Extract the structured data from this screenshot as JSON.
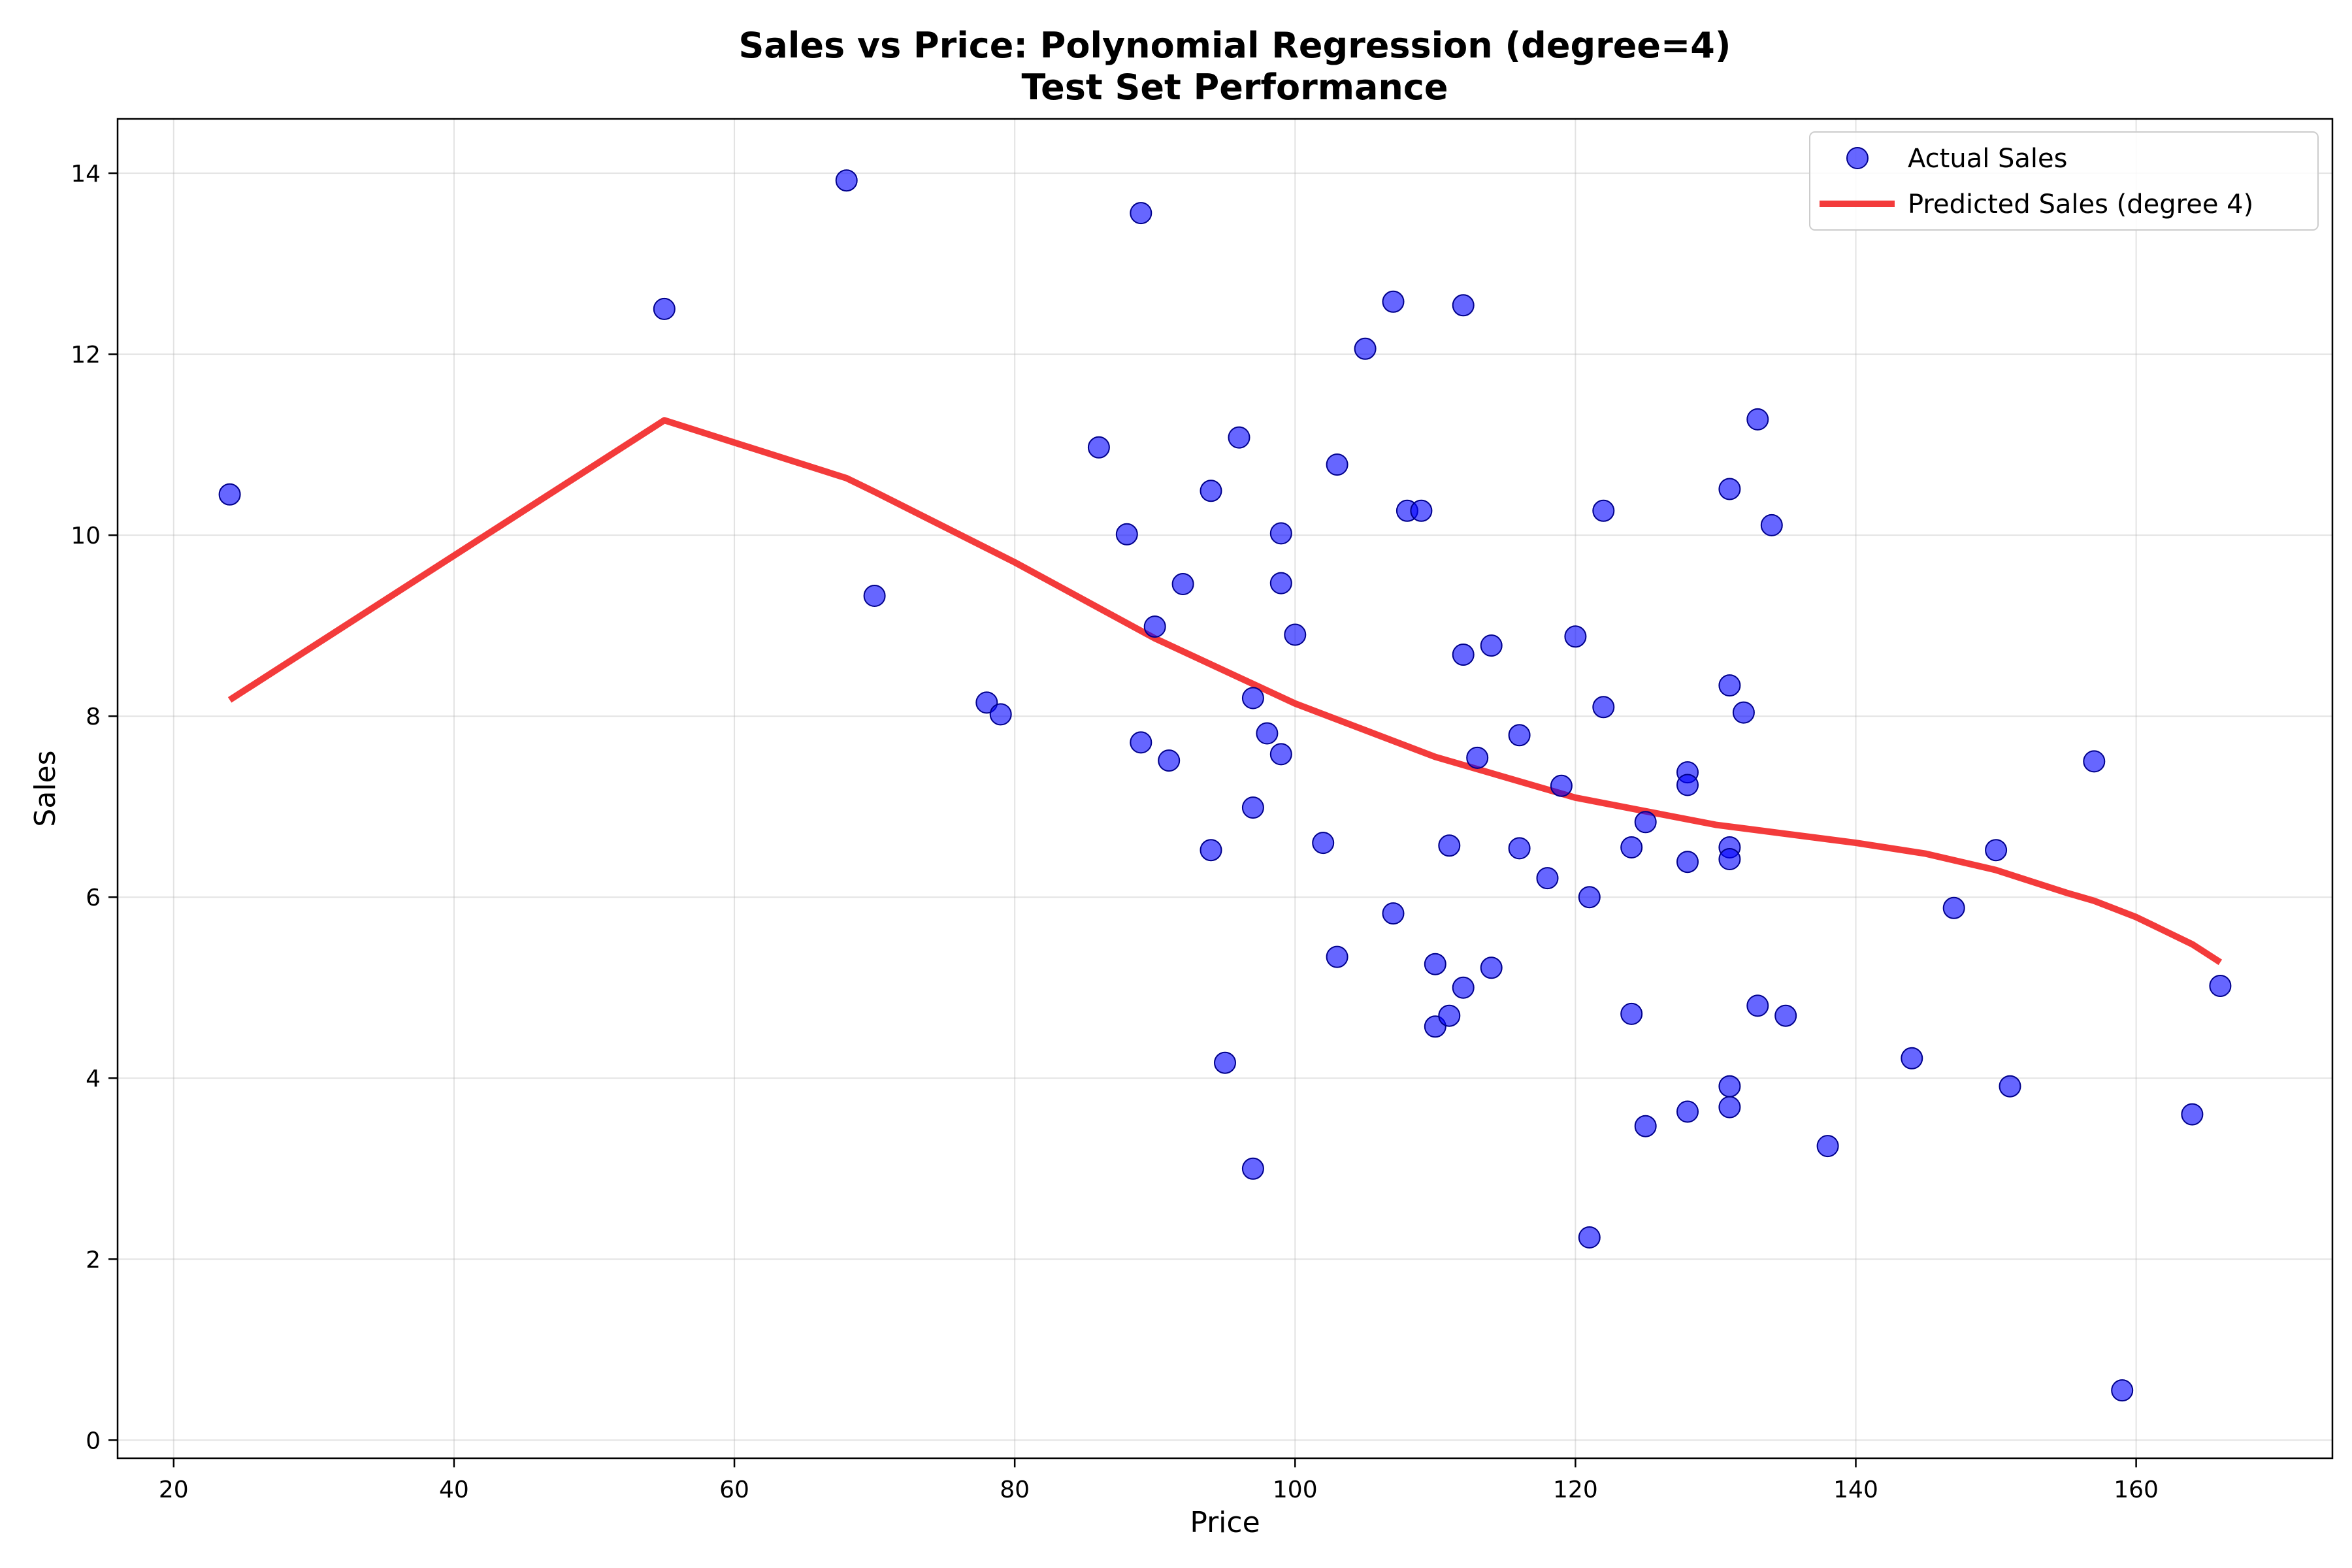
{
  "chart_data": {
    "type": "scatter",
    "title": "Sales vs Price: Polynomial Regression (degree=4)",
    "subtitle": "Test Set Performance",
    "xlabel": "Price",
    "ylabel": "Sales",
    "xlim": [
      16,
      174
    ],
    "ylim": [
      -0.2,
      14.6
    ],
    "xticks": [
      20,
      40,
      60,
      80,
      100,
      120,
      140,
      160
    ],
    "yticks": [
      0,
      2,
      4,
      6,
      8,
      10,
      12,
      14
    ],
    "grid": true,
    "legend_position": "top-right",
    "series": [
      {
        "name": "Actual Sales",
        "kind": "scatter",
        "color": "#0000ff",
        "points": [
          [
            24,
            10.45
          ],
          [
            55,
            12.5
          ],
          [
            68,
            13.92
          ],
          [
            70,
            9.33
          ],
          [
            78,
            8.15
          ],
          [
            79,
            8.02
          ],
          [
            86,
            10.97
          ],
          [
            88,
            10.01
          ],
          [
            89,
            13.56
          ],
          [
            89,
            7.71
          ],
          [
            90,
            8.99
          ],
          [
            91,
            7.51
          ],
          [
            92,
            9.46
          ],
          [
            94,
            10.49
          ],
          [
            94,
            6.52
          ],
          [
            95,
            4.17
          ],
          [
            96,
            11.08
          ],
          [
            97,
            8.2
          ],
          [
            97,
            6.99
          ],
          [
            97,
            3.0
          ],
          [
            98,
            7.81
          ],
          [
            99,
            10.02
          ],
          [
            99,
            9.47
          ],
          [
            99,
            7.58
          ],
          [
            100,
            8.9
          ],
          [
            102,
            6.6
          ],
          [
            103,
            10.78
          ],
          [
            103,
            5.34
          ],
          [
            105,
            12.06
          ],
          [
            107,
            12.58
          ],
          [
            107,
            5.82
          ],
          [
            108,
            10.27
          ],
          [
            109,
            10.27
          ],
          [
            110,
            5.26
          ],
          [
            110,
            4.57
          ],
          [
            111,
            6.57
          ],
          [
            111,
            4.69
          ],
          [
            112,
            12.54
          ],
          [
            112,
            8.68
          ],
          [
            112,
            5.0
          ],
          [
            113,
            7.54
          ],
          [
            114,
            8.78
          ],
          [
            114,
            5.22
          ],
          [
            116,
            7.79
          ],
          [
            116,
            6.54
          ],
          [
            118,
            6.21
          ],
          [
            119,
            7.23
          ],
          [
            120,
            8.88
          ],
          [
            121,
            6.0
          ],
          [
            121,
            2.24
          ],
          [
            122,
            10.27
          ],
          [
            122,
            8.1
          ],
          [
            124,
            6.55
          ],
          [
            124,
            4.71
          ],
          [
            125,
            6.83
          ],
          [
            125,
            3.47
          ],
          [
            128,
            7.38
          ],
          [
            128,
            7.24
          ],
          [
            128,
            6.39
          ],
          [
            128,
            3.63
          ],
          [
            131,
            10.51
          ],
          [
            131,
            8.34
          ],
          [
            131,
            6.55
          ],
          [
            131,
            6.42
          ],
          [
            131,
            3.91
          ],
          [
            131,
            3.68
          ],
          [
            132,
            8.04
          ],
          [
            133,
            11.28
          ],
          [
            133,
            4.8
          ],
          [
            134,
            10.11
          ],
          [
            135,
            4.69
          ],
          [
            138,
            3.25
          ],
          [
            144,
            4.22
          ],
          [
            147,
            5.88
          ],
          [
            150,
            6.52
          ],
          [
            151,
            3.91
          ],
          [
            157,
            7.5
          ],
          [
            159,
            0.55
          ],
          [
            164,
            3.6
          ],
          [
            166,
            5.02
          ]
        ]
      },
      {
        "name": "Predicted Sales (degree 4)",
        "kind": "line",
        "color": "#f23030",
        "points": [
          [
            24,
            8.18
          ],
          [
            55,
            11.27
          ],
          [
            68,
            10.63
          ],
          [
            70,
            10.48
          ],
          [
            80,
            9.7
          ],
          [
            90,
            8.86
          ],
          [
            100,
            8.14
          ],
          [
            110,
            7.55
          ],
          [
            120,
            7.1
          ],
          [
            130,
            6.8
          ],
          [
            140,
            6.6
          ],
          [
            145,
            6.48
          ],
          [
            150,
            6.3
          ],
          [
            155,
            6.05
          ],
          [
            157,
            5.96
          ],
          [
            160,
            5.78
          ],
          [
            164,
            5.48
          ],
          [
            166,
            5.28
          ]
        ]
      }
    ]
  }
}
